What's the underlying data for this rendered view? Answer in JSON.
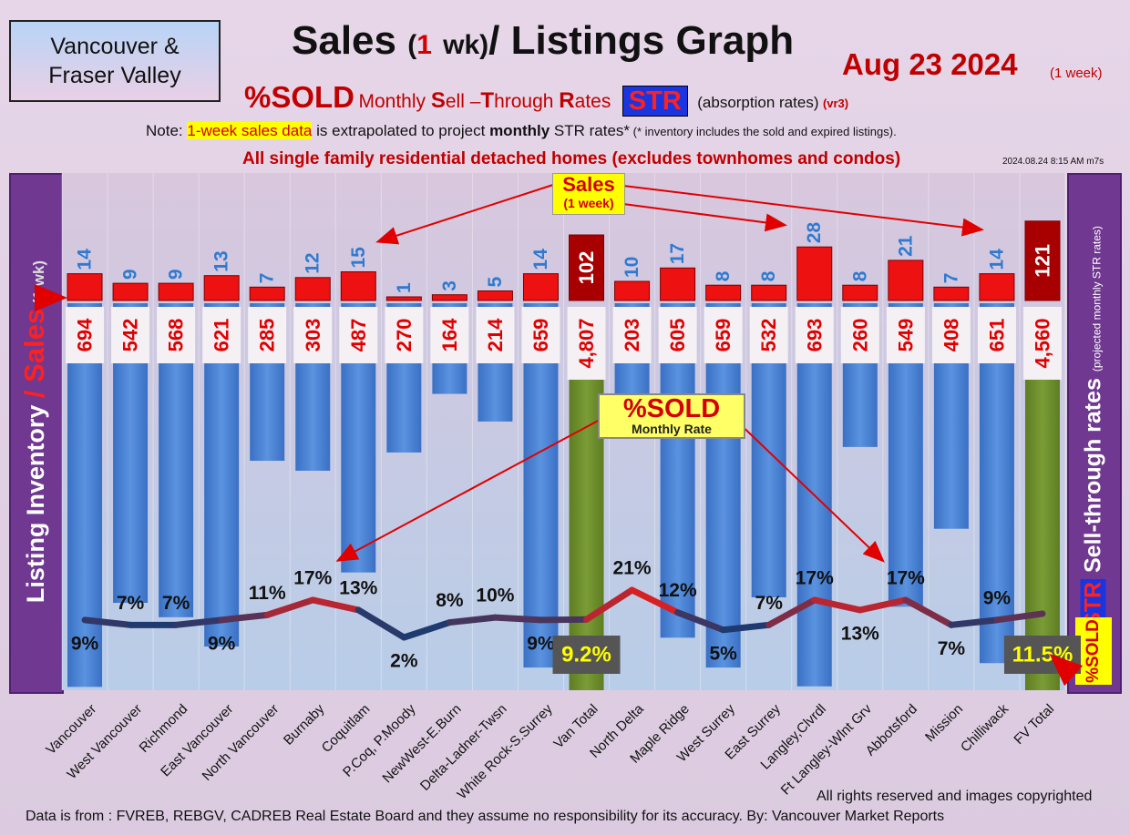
{
  "header": {
    "region_line1": "Vancouver &",
    "region_line2": "Fraser Valley",
    "title_part1": "Sales",
    "title_open": "(",
    "title_num": "1",
    "title_unit": "wk)",
    "title_part2": "/ Listings Graph",
    "date": "Aug 23  2024",
    "date_note": "(1 week)",
    "subtitle_sold": "%SOLD",
    "subtitle_rates_m": "Monthly ",
    "subtitle_S": "S",
    "subtitle_ell": "ell –",
    "subtitle_T": "T",
    "subtitle_hrough": "hrough ",
    "subtitle_R": "R",
    "subtitle_ates": "ates",
    "str_badge": "STR",
    "absorption": "(absorption rates)",
    "version": "(vr3)",
    "note_prefix": "Note: ",
    "note_highlight": "1-week sales data",
    "note_mid": " is extrapolated to project ",
    "note_bold": "monthly",
    "note_tail": " STR rates*",
    "note_small": " (* inventory includes the sold and expired listings).",
    "homes_line": "All single family residential detached homes (excludes townhomes and condos)",
    "timestamp": "2024.08.24 8:15 AM m7s"
  },
  "axes": {
    "left_main": "Listing Inventory ",
    "left_slash": "/ ",
    "left_sales": "Sales",
    "left_small": " (1 wk)",
    "right_str": "STR",
    "right_main": " Sell-through rates ",
    "right_small": "(projected monthly STR rates)",
    "right_sold": "%SOLD"
  },
  "annotations": {
    "sales_label": "Sales",
    "sales_sub": "(1 week)",
    "sold_label": "%SOLD",
    "sold_sub": "Monthly Rate"
  },
  "footer": {
    "copyright": "All rights reserved and  images copyrighted",
    "source": "Data is from : FVREB, REBGV, CADREB Real Estate Board and they assume no responsibility for its accuracy. By: Vancouver Market Reports"
  },
  "colors": {
    "listing_bar": "#4f87d6",
    "total_bar": "#6b8e2a",
    "sales_bar": "#ee1111",
    "total_sales_bar": "#a80000",
    "line_high": "#e02020",
    "line_low": "#1e3a6e"
  },
  "chart_data": {
    "type": "bar",
    "categories": [
      "Vancouver",
      "West Vancouver",
      "Richmond",
      "East Vancouver",
      "North Vancouver",
      "Burnaby",
      "Coquitlam",
      "P.Coq, P.Moody",
      "NewWest-E.Burn",
      "Delta-Ladner-Twsn",
      "White Rock-S.Surrey",
      "Van Total",
      "North Delta",
      "Maple Ridge",
      "West Surrey",
      "East Surrey",
      "Langley,Clvrdl",
      "Ft Langley-Wlnt Grv",
      "Abbotsford",
      "Mission",
      "Chilliwack",
      "FV Total"
    ],
    "series": [
      {
        "name": "Listing Inventory",
        "values": [
          694,
          542,
          568,
          621,
          285,
          303,
          487,
          270,
          164,
          214,
          659,
          4807,
          203,
          605,
          659,
          532,
          693,
          260,
          549,
          408,
          651,
          4560
        ]
      },
      {
        "name": "Sales",
        "values": [
          14,
          9,
          9,
          13,
          7,
          12,
          15,
          1,
          3,
          5,
          14,
          102,
          10,
          17,
          8,
          8,
          28,
          8,
          21,
          7,
          14,
          121
        ]
      },
      {
        "name": "%SOLD",
        "values": [
          9,
          7,
          7,
          9,
          11,
          17,
          13,
          2,
          8,
          10,
          9,
          9.2,
          21,
          12,
          5,
          7,
          17,
          13,
          17,
          7,
          9,
          11.5
        ]
      }
    ],
    "value_labels": [
      "694",
      "542",
      "568",
      "621",
      "285",
      "303",
      "487",
      "270",
      "164",
      "214",
      "659",
      "4,807",
      "203",
      "605",
      "659",
      "532",
      "693",
      "260",
      "549",
      "408",
      "651",
      "4,560"
    ],
    "pct_labels": [
      "9%",
      "7%",
      "7%",
      "9%",
      "11%",
      "17%",
      "13%",
      "2%",
      "8%",
      "10%",
      "9%",
      "9.2%",
      "21%",
      "12%",
      "5%",
      "7%",
      "17%",
      "13%",
      "17%",
      "7%",
      "9%",
      "11.5%"
    ],
    "grid": false,
    "legend": "none"
  }
}
